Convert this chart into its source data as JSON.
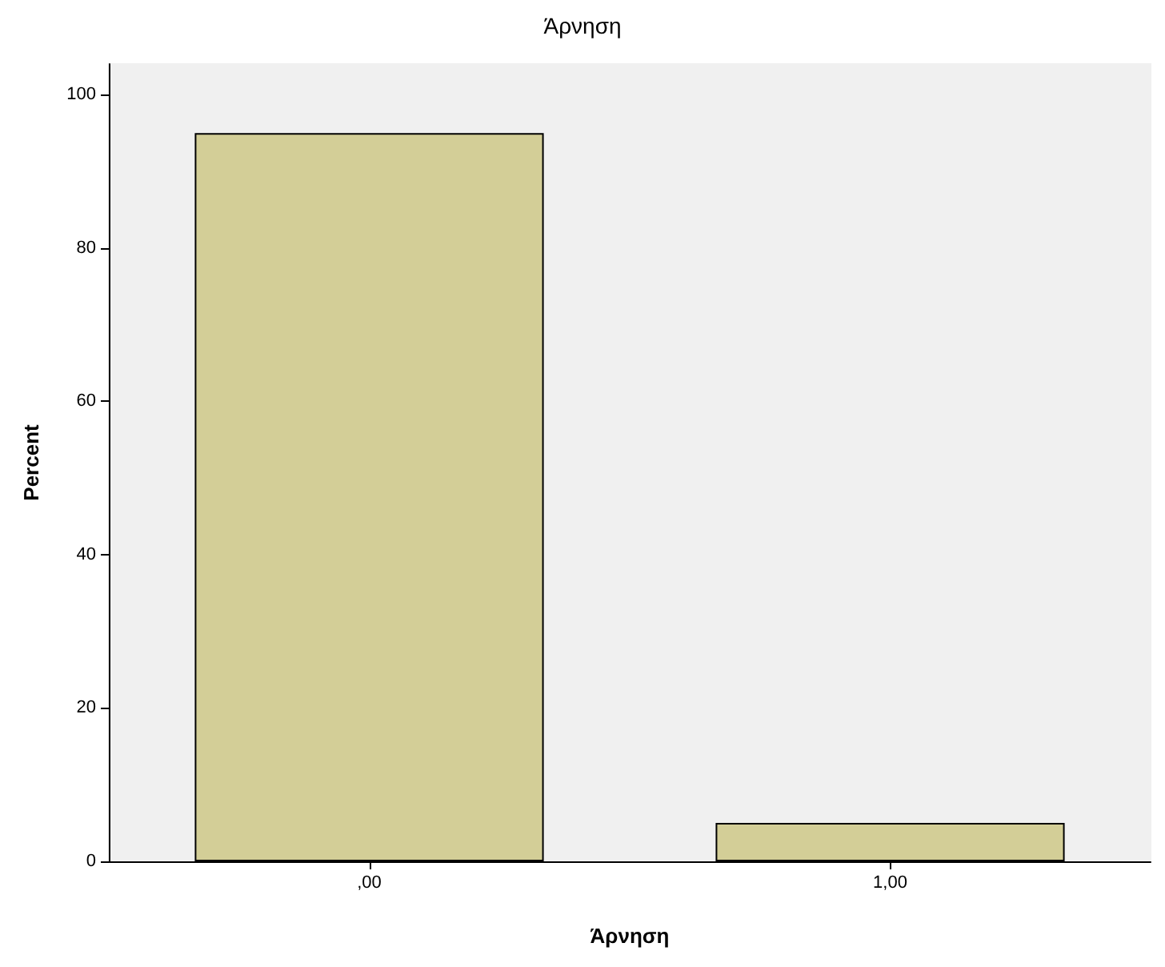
{
  "chart_data": {
    "type": "bar",
    "title": "Άρνηση",
    "xlabel": "Άρνηση",
    "ylabel": "Percent",
    "categories": [
      ",00",
      "1,00"
    ],
    "values": [
      95,
      5
    ],
    "color": "#d3ce97",
    "ylim": [
      0,
      104
    ],
    "yticks": [
      0,
      20,
      40,
      60,
      80,
      100
    ],
    "grid": false
  }
}
